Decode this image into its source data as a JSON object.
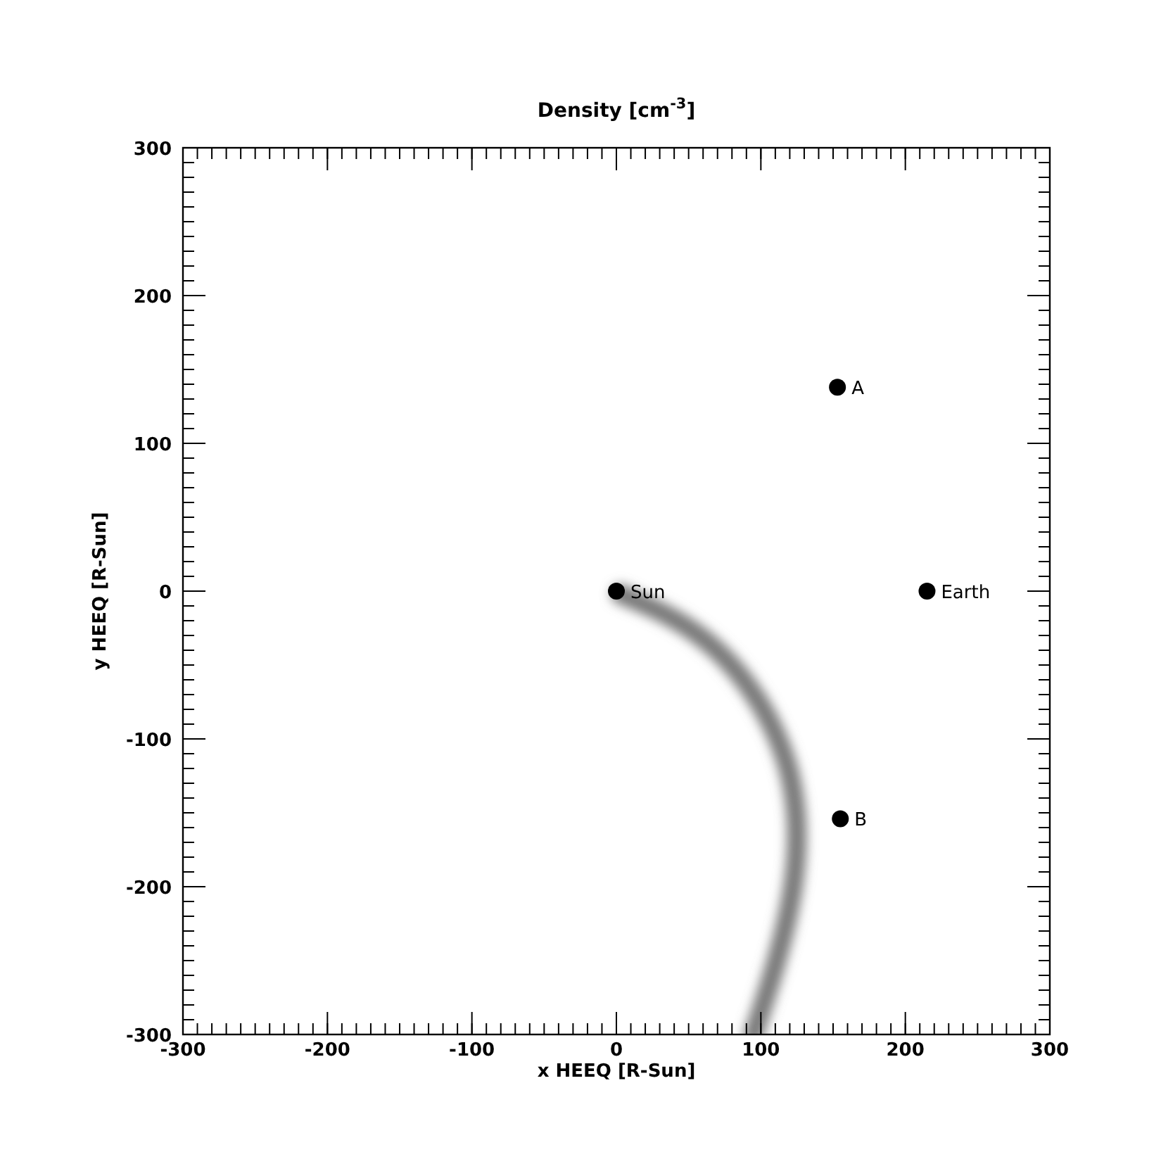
{
  "chart_data": {
    "type": "scatter",
    "title": "Density [cm$^{-3}$]",
    "xlabel": "x HEEQ [R-Sun]",
    "ylabel": "y HEEQ [R-Sun]",
    "xlim": [
      -300,
      300
    ],
    "ylim": [
      -300,
      300
    ],
    "xticks": [
      -300,
      -200,
      -100,
      0,
      100,
      200,
      300
    ],
    "yticks": [
      -300,
      -200,
      -100,
      0,
      100,
      200,
      300
    ],
    "grid": false,
    "marker": "circle",
    "annotations": [
      {
        "text": "Sun",
        "x": 0,
        "y": 0
      },
      {
        "text": "A",
        "x": 153,
        "y": 138
      },
      {
        "text": "Earth",
        "x": 215,
        "y": 0
      },
      {
        "text": "B",
        "x": 155,
        "y": -154
      }
    ],
    "series": [
      {
        "color": "#000000",
        "x": [
          0,
          153,
          215,
          155
        ],
        "values": [
          0,
          138,
          0,
          -154
        ]
      }
    ]
  }
}
